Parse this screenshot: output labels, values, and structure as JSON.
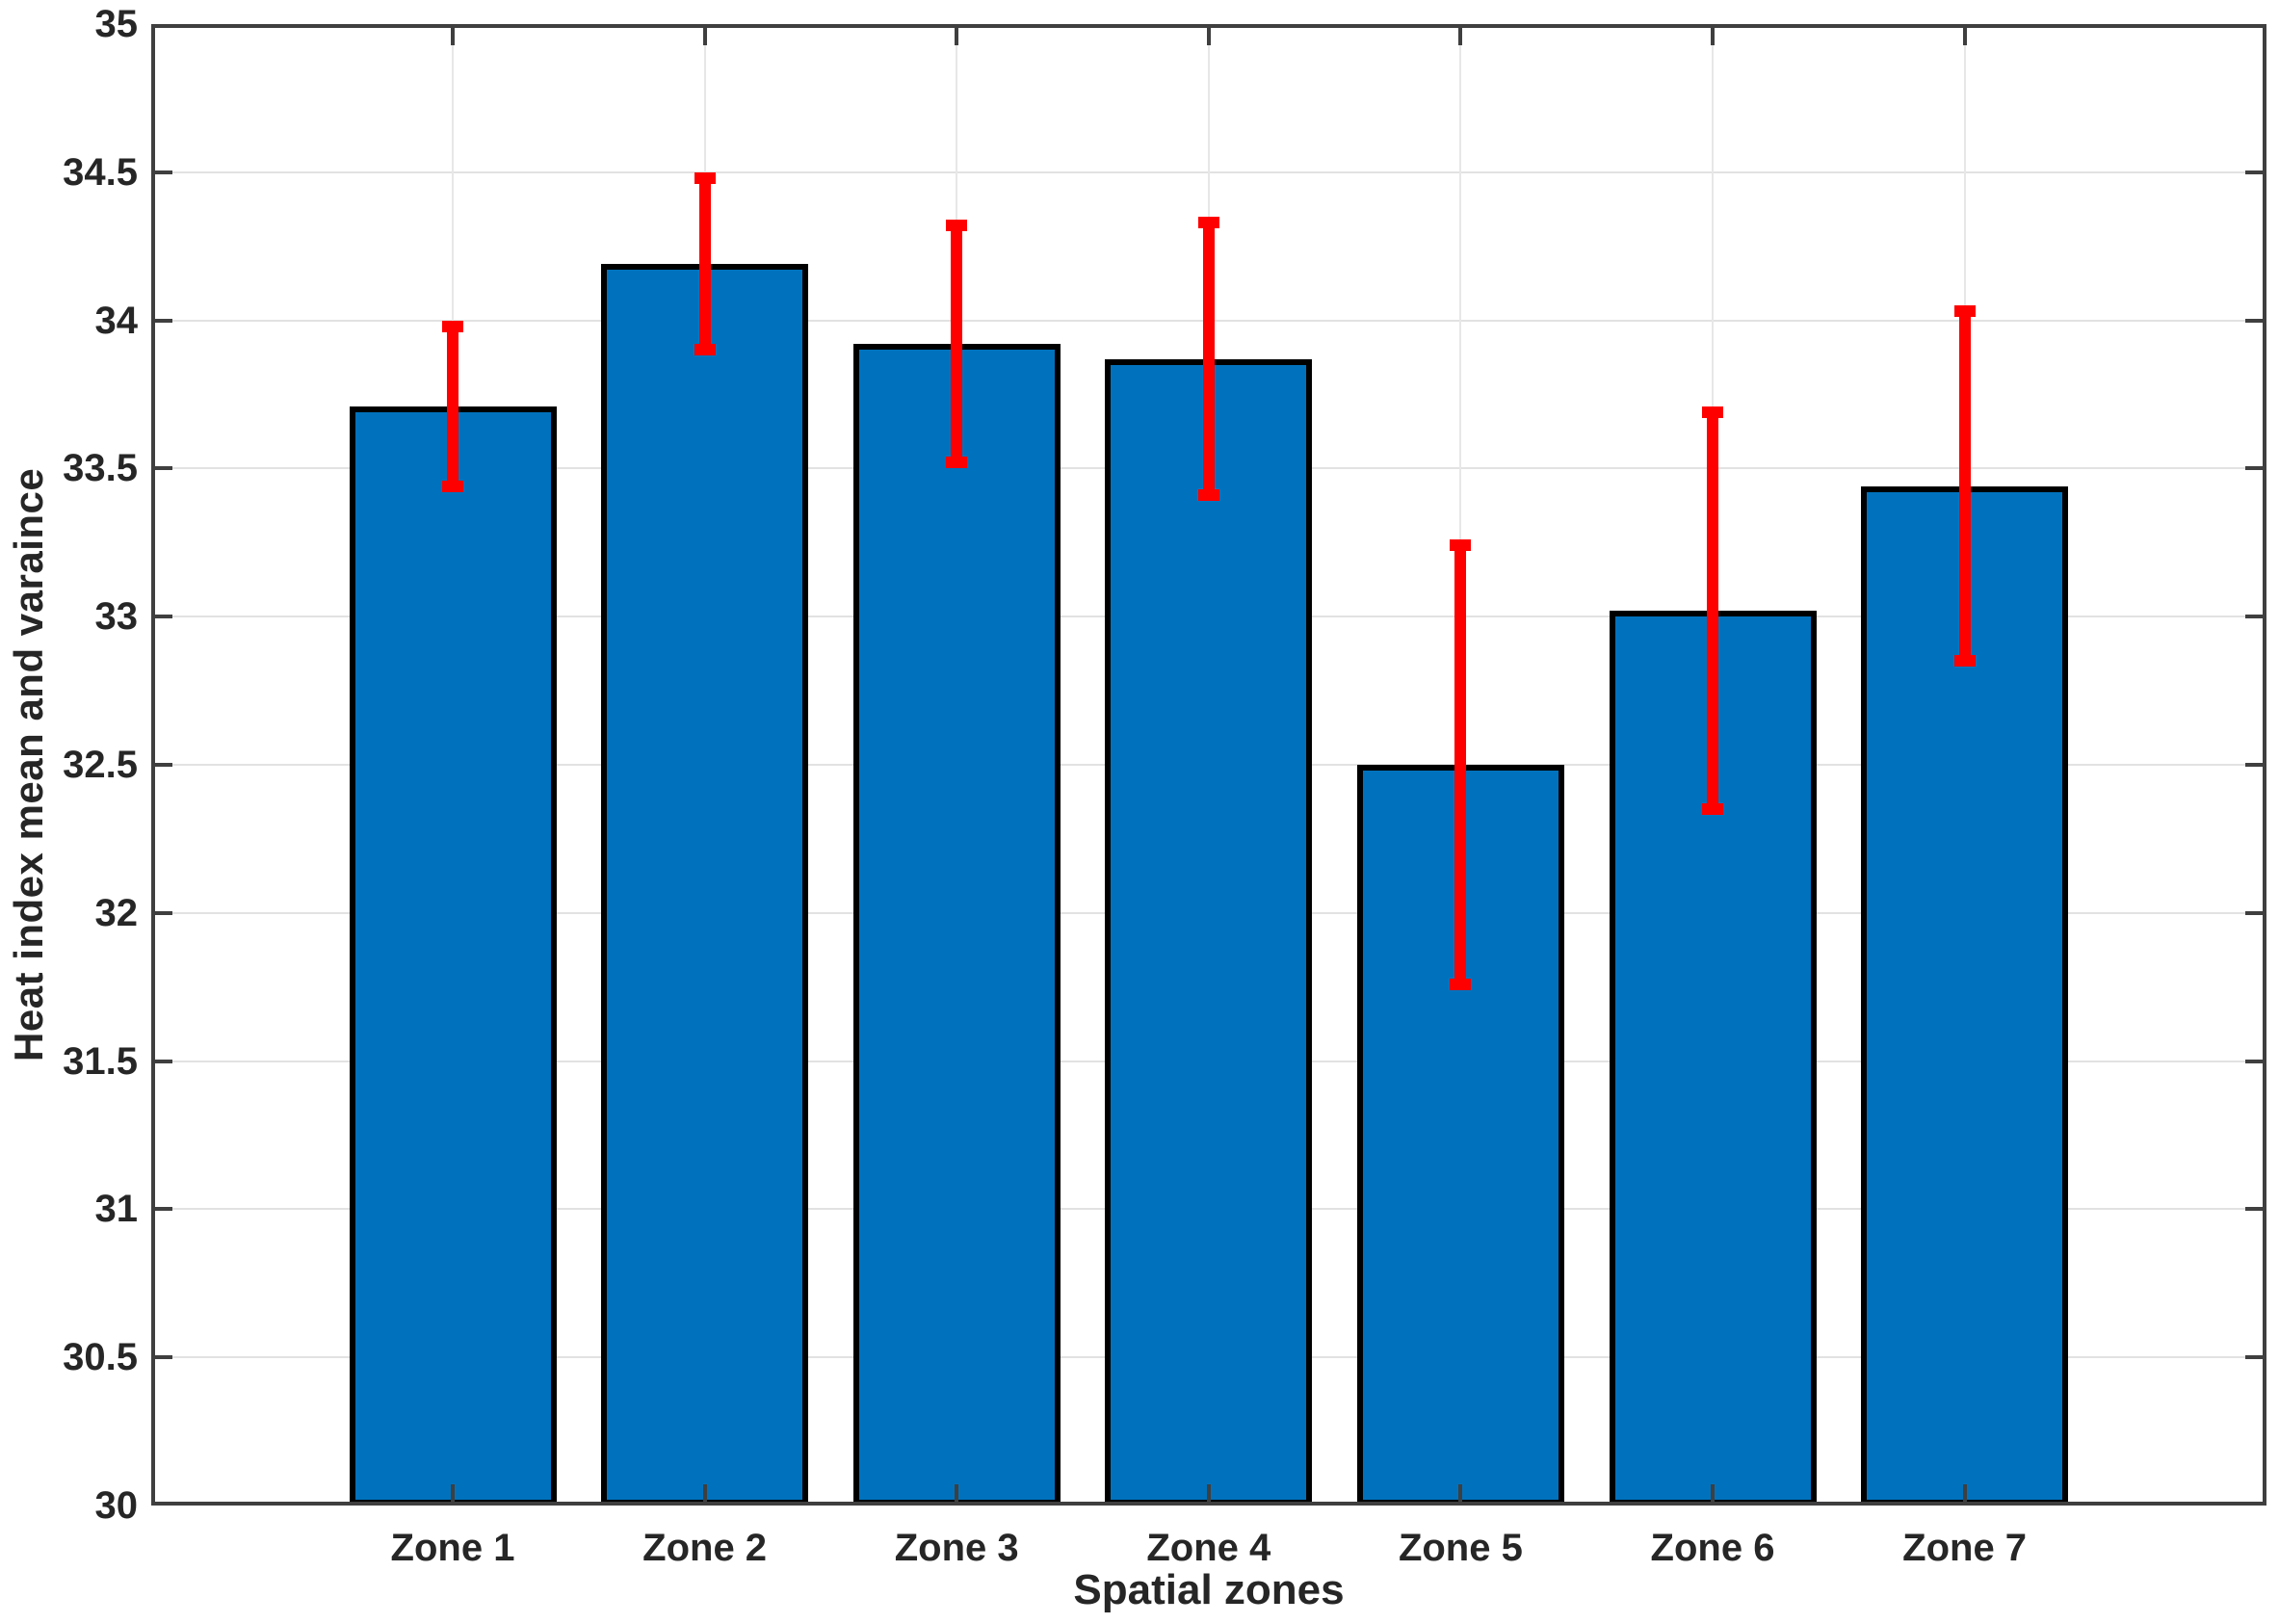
{
  "figure": {
    "xlabel": "Spatial zones",
    "ylabel": "Heat index mean and varaince"
  },
  "chart_data": {
    "type": "bar",
    "title": "",
    "xlabel": "Spatial zones",
    "ylabel": "Heat index mean and varaince",
    "categories": [
      "Zone 1",
      "Zone 2",
      "Zone 3",
      "Zone 4",
      "Zone 5",
      "Zone 6",
      "Zone 7"
    ],
    "series": [
      {
        "name": "Heat index mean",
        "values": [
          33.71,
          34.19,
          33.92,
          33.87,
          32.5,
          33.02,
          33.44
        ],
        "error_bars": [
          0.27,
          0.29,
          0.4,
          0.46,
          0.74,
          0.67,
          0.59
        ]
      }
    ],
    "error_bar_ranges": [
      [
        33.44,
        33.98
      ],
      [
        33.9,
        34.48
      ],
      [
        33.52,
        34.32
      ],
      [
        33.41,
        34.33
      ],
      [
        31.76,
        33.24
      ],
      [
        32.35,
        33.69
      ],
      [
        32.85,
        34.03
      ]
    ],
    "ylim": [
      30,
      35
    ],
    "yticks": [
      30,
      30.5,
      31,
      31.5,
      32,
      32.5,
      33,
      33.5,
      34,
      34.5,
      35
    ],
    "yticklabels": [
      "30",
      "30.5",
      "31",
      "31.5",
      "32",
      "32.5",
      "33",
      "33.5",
      "34",
      "34.5",
      "35"
    ],
    "grid": true,
    "legend_position": "none",
    "colors": {
      "bar_fill": "#0072BD",
      "bar_edge": "#000000",
      "error_bar": "#FF0000",
      "axis": "#3F3F3F",
      "grid": "#E2E2E2",
      "text": "#262626",
      "background": "#FFFFFF"
    }
  }
}
